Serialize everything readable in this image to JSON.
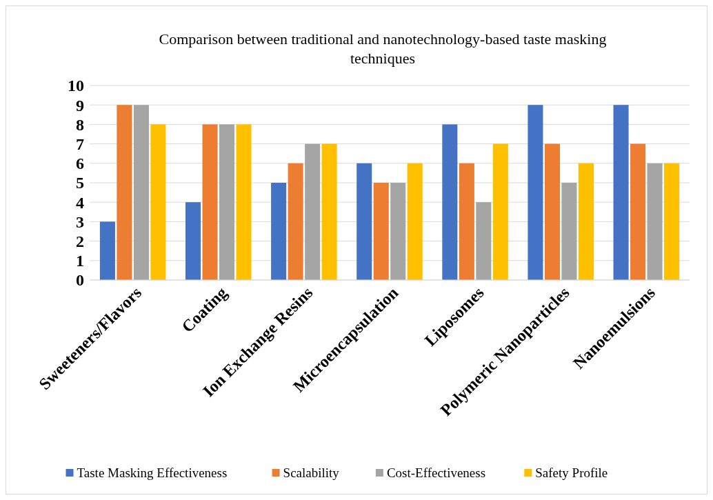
{
  "chart_data": {
    "type": "bar",
    "title": "Comparison between traditional and nanotechnology-based taste masking techniques",
    "categories": [
      "Sweeteners/Flavors",
      "Coating",
      "Ion Exchange Resins",
      "Microencapsulation",
      "Liposomes",
      "Polymeric Nanoparticles",
      "Nanoemulsions"
    ],
    "series": [
      {
        "name": "Taste Masking Effectiveness",
        "color": "#4472c4",
        "values": [
          3,
          4,
          5,
          6,
          8,
          9,
          9
        ]
      },
      {
        "name": "Scalability",
        "color": "#ed7d31",
        "values": [
          9,
          8,
          6,
          5,
          6,
          7,
          7
        ]
      },
      {
        "name": "Cost-Effectiveness",
        "color": "#a5a5a5",
        "values": [
          9,
          8,
          7,
          5,
          4,
          5,
          6
        ]
      },
      {
        "name": "Safety Profile",
        "color": "#ffc000",
        "values": [
          8,
          8,
          7,
          6,
          7,
          6,
          6
        ]
      }
    ],
    "ylim": [
      0,
      10
    ],
    "yticks": [
      0,
      1,
      2,
      3,
      4,
      5,
      6,
      7,
      8,
      9,
      10
    ],
    "grid": "y",
    "legend": "bottom"
  }
}
